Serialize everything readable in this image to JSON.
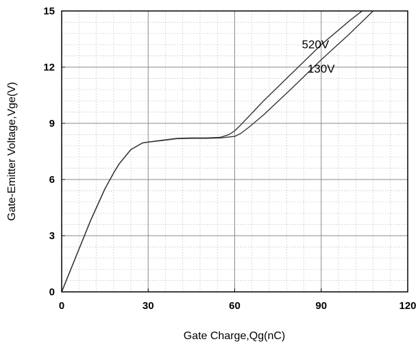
{
  "chart_data": {
    "type": "line",
    "title": "",
    "xlabel": "Gate Charge,Qg(nC)",
    "ylabel": "Gate-Emitter Voltage,Vge(V)",
    "xlim": [
      0,
      120
    ],
    "ylim": [
      0,
      15
    ],
    "xticks": [
      "0",
      "30",
      "60",
      "90",
      "120"
    ],
    "yticks": [
      "0",
      "3",
      "6",
      "9",
      "12",
      "15"
    ],
    "grid": true,
    "legend": "inline labels near line ends",
    "series": [
      {
        "name": "520V",
        "color": "#333333",
        "x": [
          0,
          5,
          10,
          15,
          18,
          20,
          24,
          28,
          30,
          35,
          40,
          45,
          50,
          55,
          58,
          60,
          62,
          66,
          70,
          80,
          90,
          100,
          105,
          108
        ],
        "y": [
          0,
          1.9,
          3.8,
          5.5,
          6.35,
          6.85,
          7.6,
          7.95,
          8.0,
          8.1,
          8.2,
          8.22,
          8.22,
          8.25,
          8.4,
          8.6,
          8.9,
          9.55,
          10.2,
          11.7,
          13.2,
          14.5,
          15.1,
          15.5
        ]
      },
      {
        "name": "130V",
        "color": "#333333",
        "x": [
          0,
          5,
          10,
          15,
          18,
          20,
          24,
          28,
          30,
          35,
          40,
          45,
          50,
          55,
          60,
          62,
          65,
          70,
          80,
          90,
          100,
          108,
          110
        ],
        "y": [
          0,
          1.9,
          3.8,
          5.5,
          6.35,
          6.85,
          7.6,
          7.95,
          8.0,
          8.08,
          8.18,
          8.2,
          8.2,
          8.22,
          8.3,
          8.45,
          8.8,
          9.45,
          10.9,
          12.4,
          13.8,
          15.0,
          15.3
        ]
      }
    ],
    "annotations": [
      {
        "text": "520V",
        "x": 88,
        "y": 13.0
      },
      {
        "text": "130V",
        "x": 90,
        "y": 11.7
      }
    ]
  }
}
